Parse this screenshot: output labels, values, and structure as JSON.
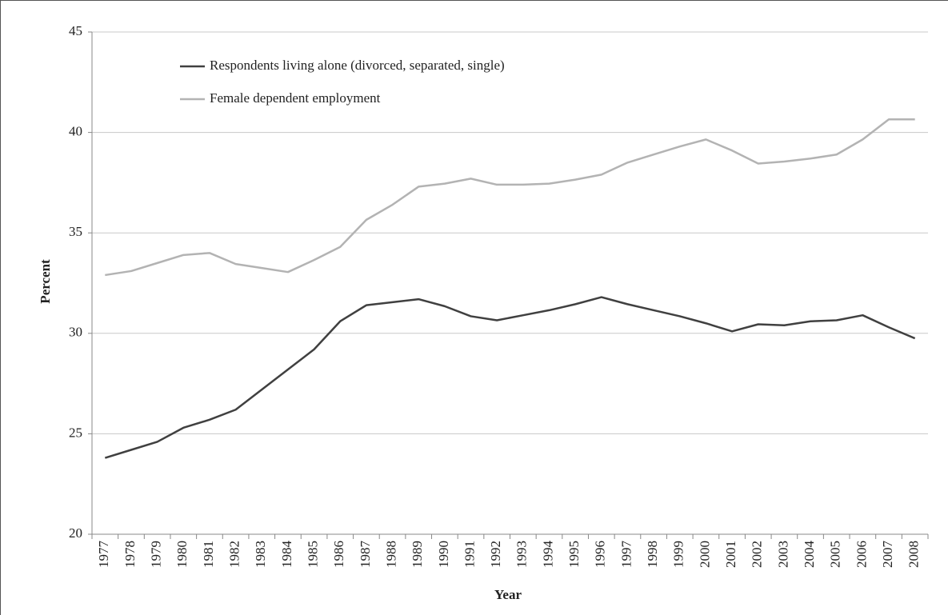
{
  "chart_data": {
    "type": "line",
    "xlabel": "Year",
    "ylabel": "Percent",
    "categories": [
      "1977",
      "1978",
      "1979",
      "1980",
      "1981",
      "1982",
      "1983",
      "1984",
      "1985",
      "1986",
      "1987",
      "1988",
      "1989",
      "1990",
      "1991",
      "1992",
      "1993",
      "1994",
      "1995",
      "1996",
      "1997",
      "1998",
      "1999",
      "2000",
      "2001",
      "2002",
      "2003",
      "2004",
      "2005",
      "2006",
      "2007",
      "2008"
    ],
    "series": [
      {
        "name": "Respondents living alone (divorced, separated, single)",
        "color": "#404040",
        "values": [
          23.8,
          24.2,
          24.6,
          25.3,
          25.7,
          26.2,
          27.2,
          28.2,
          29.2,
          30.6,
          31.4,
          31.55,
          31.7,
          31.35,
          30.85,
          30.65,
          30.9,
          31.15,
          31.45,
          31.8,
          31.45,
          31.15,
          30.85,
          30.5,
          30.1,
          30.45,
          30.4,
          30.6,
          30.65,
          30.9,
          30.3,
          29.75
        ]
      },
      {
        "name": "Female dependent employment",
        "color": "#b3b3b3",
        "values": [
          32.9,
          33.1,
          33.5,
          33.9,
          34.0,
          33.45,
          33.25,
          33.05,
          33.65,
          34.3,
          35.65,
          36.4,
          37.3,
          37.45,
          37.7,
          37.4,
          37.4,
          37.45,
          37.65,
          37.9,
          38.5,
          38.9,
          39.3,
          39.65,
          39.1,
          38.45,
          38.55,
          38.7,
          38.9,
          39.65,
          40.65,
          40.65
        ]
      }
    ],
    "ylim": [
      20,
      45
    ],
    "yticks": [
      20,
      25,
      30,
      35,
      40,
      45
    ],
    "grid": true,
    "legend": "upper left"
  }
}
